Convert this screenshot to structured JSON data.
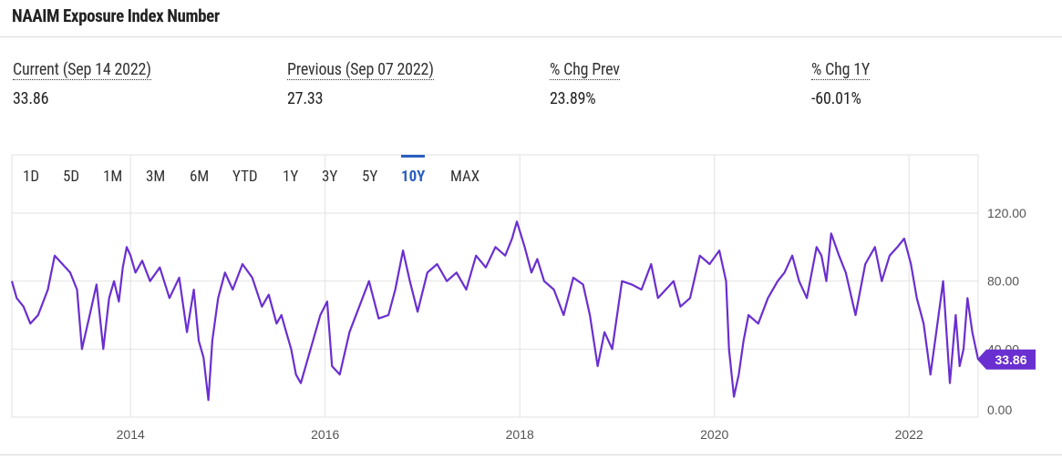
{
  "header": {
    "title": "NAAIM Exposure Index Number"
  },
  "stats": [
    {
      "label": "Current (Sep 14 2022)",
      "value": "33.86"
    },
    {
      "label": "Previous (Sep 07 2022)",
      "value": "27.33"
    },
    {
      "label": "% Chg Prev",
      "value": "23.89%"
    },
    {
      "label": "% Chg 1Y",
      "value": "-60.01%"
    }
  ],
  "ranges": [
    "1D",
    "5D",
    "1M",
    "3M",
    "6M",
    "YTD",
    "1Y",
    "3Y",
    "5Y",
    "10Y",
    "MAX"
  ],
  "active_range": "10Y",
  "colors": {
    "line": "#6a2fd0",
    "accent": "#2b5fc0",
    "grid": "#e2e2e2"
  },
  "chart_data": {
    "type": "line",
    "title": "",
    "xlabel": "",
    "ylabel": "",
    "x_range": [
      2012.78,
      2022.71
    ],
    "ylim": [
      0,
      120
    ],
    "y_ticks": [
      "120.00",
      "80.00",
      "40.00",
      "0.00"
    ],
    "x_ticks": [
      "2014",
      "2016",
      "2018",
      "2020",
      "2022"
    ],
    "grid": true,
    "last_value_label": "33.86",
    "series": [
      {
        "name": "",
        "x": [
          2012.78,
          2012.83,
          2012.9,
          2012.97,
          2013.05,
          2013.15,
          2013.22,
          2013.3,
          2013.38,
          2013.45,
          2013.5,
          2013.58,
          2013.65,
          2013.72,
          2013.78,
          2013.83,
          2013.88,
          2013.92,
          2013.96,
          2014.0,
          2014.05,
          2014.12,
          2014.2,
          2014.3,
          2014.4,
          2014.5,
          2014.58,
          2014.65,
          2014.7,
          2014.75,
          2014.8,
          2014.84,
          2014.9,
          2014.97,
          2015.05,
          2015.15,
          2015.25,
          2015.35,
          2015.42,
          2015.5,
          2015.55,
          2015.6,
          2015.65,
          2015.7,
          2015.75,
          2015.85,
          2015.95,
          2016.02,
          2016.07,
          2016.15,
          2016.25,
          2016.35,
          2016.45,
          2016.55,
          2016.65,
          2016.72,
          2016.8,
          2016.87,
          2016.95,
          2017.05,
          2017.15,
          2017.25,
          2017.35,
          2017.45,
          2017.55,
          2017.65,
          2017.75,
          2017.85,
          2017.92,
          2017.97,
          2018.05,
          2018.12,
          2018.18,
          2018.25,
          2018.35,
          2018.45,
          2018.55,
          2018.65,
          2018.72,
          2018.8,
          2018.87,
          2018.95,
          2019.05,
          2019.15,
          2019.25,
          2019.35,
          2019.42,
          2019.5,
          2019.58,
          2019.65,
          2019.75,
          2019.85,
          2019.95,
          2020.05,
          2020.12,
          2020.15,
          2020.2,
          2020.25,
          2020.3,
          2020.35,
          2020.45,
          2020.55,
          2020.65,
          2020.72,
          2020.8,
          2020.87,
          2020.95,
          2021.05,
          2021.1,
          2021.15,
          2021.2,
          2021.28,
          2021.35,
          2021.45,
          2021.55,
          2021.65,
          2021.72,
          2021.8,
          2021.88,
          2021.95,
          2022.02,
          2022.08,
          2022.15,
          2022.22,
          2022.28,
          2022.35,
          2022.42,
          2022.48,
          2022.52,
          2022.56,
          2022.6,
          2022.65,
          2022.71
        ],
        "values": [
          80,
          70,
          65,
          55,
          60,
          75,
          95,
          90,
          85,
          75,
          40,
          60,
          78,
          40,
          70,
          80,
          68,
          88,
          100,
          95,
          85,
          92,
          80,
          88,
          70,
          82,
          50,
          75,
          45,
          35,
          10,
          45,
          70,
          85,
          75,
          90,
          82,
          65,
          72,
          55,
          60,
          50,
          40,
          25,
          20,
          40,
          60,
          68,
          30,
          25,
          50,
          65,
          80,
          58,
          60,
          75,
          98,
          80,
          62,
          85,
          90,
          80,
          85,
          75,
          95,
          88,
          100,
          95,
          105,
          115,
          100,
          85,
          93,
          80,
          75,
          60,
          82,
          78,
          60,
          30,
          50,
          40,
          80,
          78,
          75,
          90,
          70,
          75,
          80,
          65,
          70,
          95,
          90,
          98,
          80,
          40,
          12,
          25,
          45,
          60,
          55,
          70,
          80,
          85,
          95,
          80,
          70,
          100,
          95,
          80,
          108,
          95,
          85,
          60,
          90,
          100,
          80,
          95,
          100,
          105,
          90,
          70,
          55,
          25,
          50,
          80,
          20,
          60,
          30,
          40,
          70,
          50,
          33.86
        ]
      }
    ]
  }
}
